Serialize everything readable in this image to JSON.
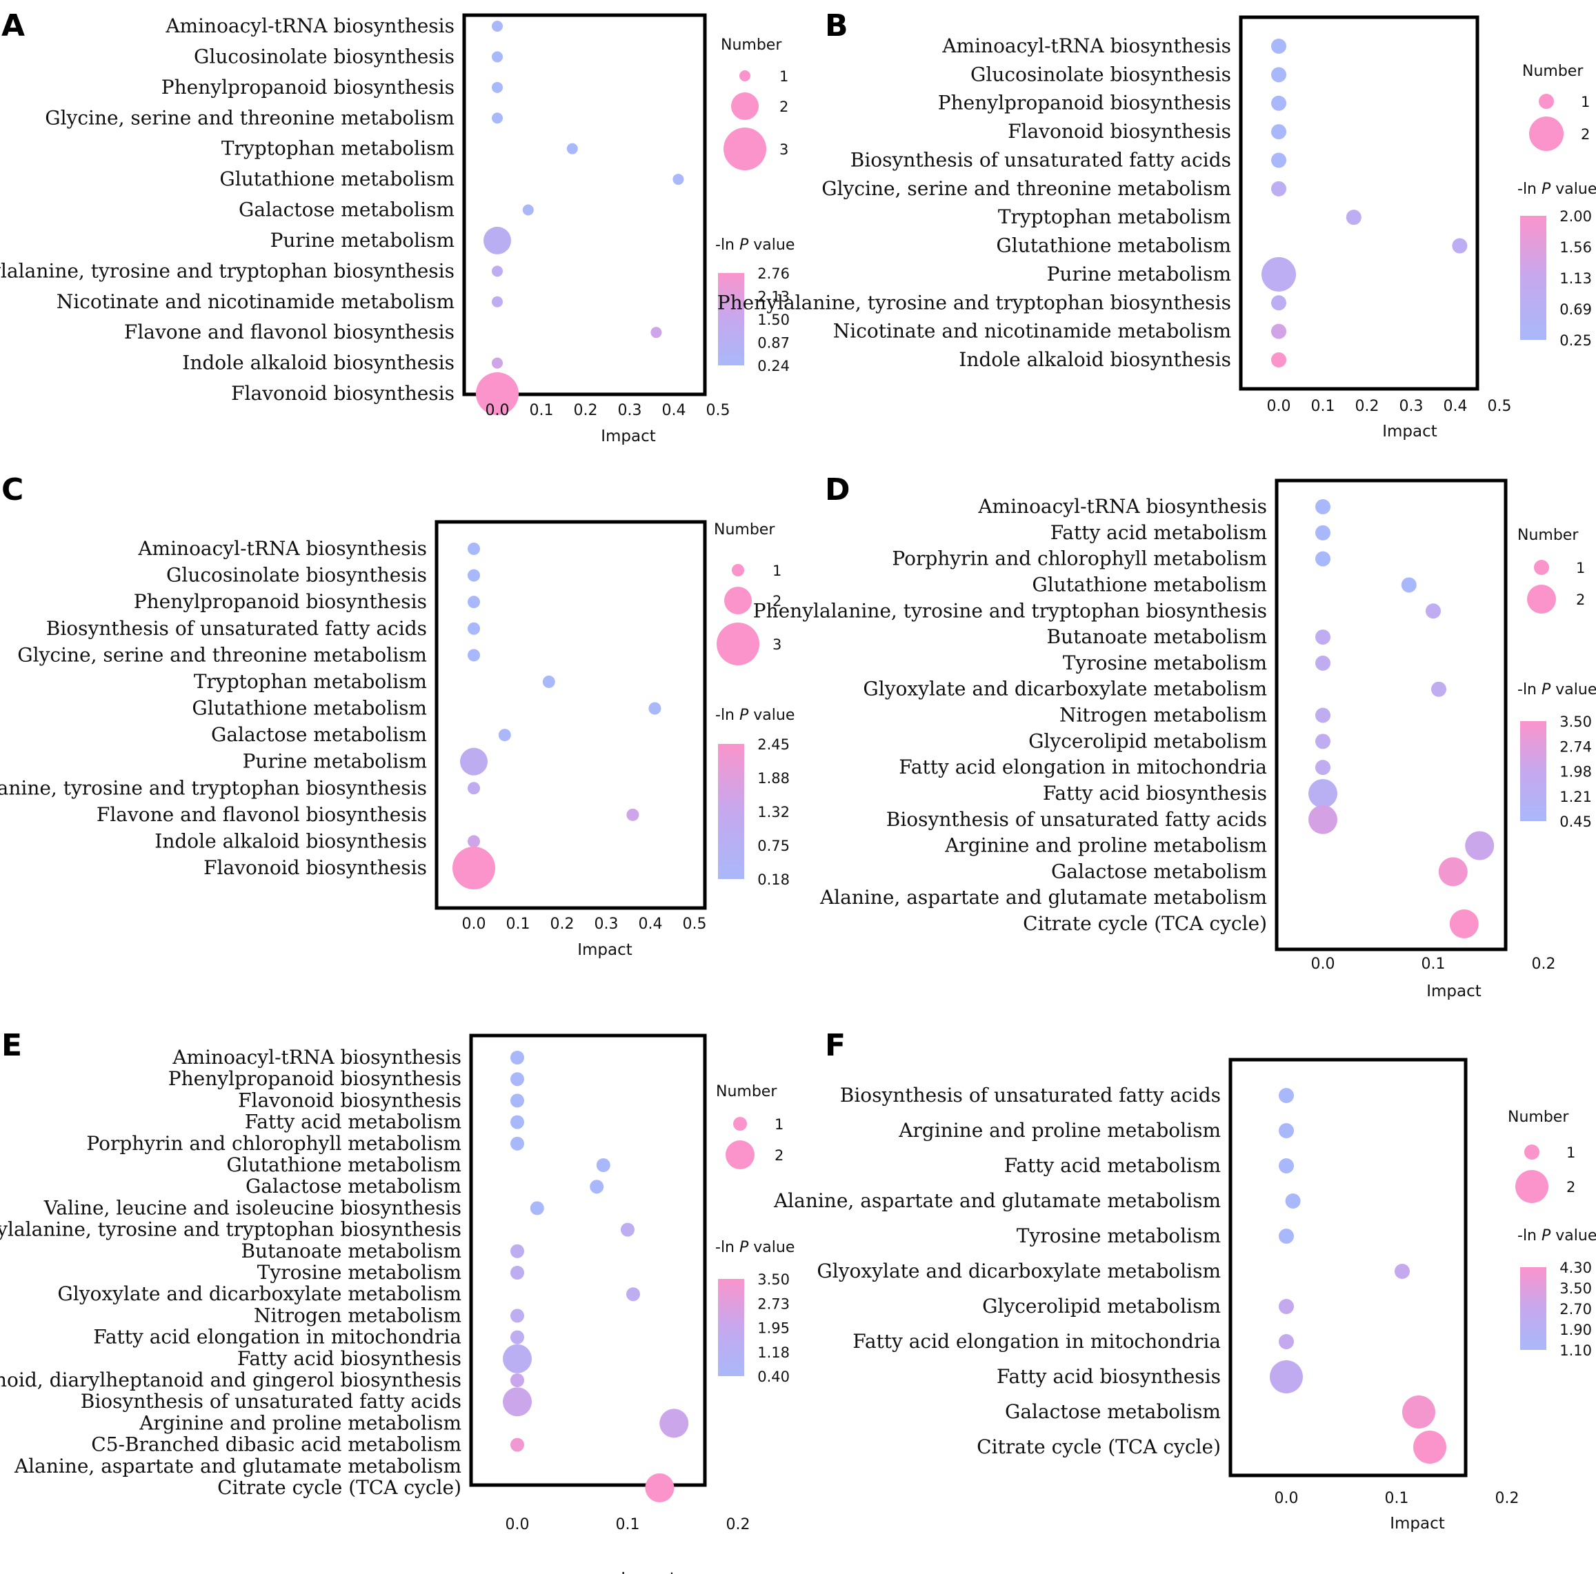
{
  "figure": {
    "colors": {
      "low": "#a9b8fa",
      "mid": "#c6a8ee",
      "high": "#fa94cb",
      "frame": "#000000"
    }
  },
  "chart_data": [
    {
      "panel": "A",
      "type": "scatter",
      "xlabel": "Impact",
      "x_ticks": [
        "0.0",
        "0.1",
        "0.2",
        "0.3",
        "0.4",
        "0.5"
      ],
      "xlim": [
        -0.08,
        0.5
      ],
      "size_legend": {
        "title": "Number",
        "values": [
          1,
          2,
          3
        ]
      },
      "color_legend": {
        "title_prefix": "-ln ",
        "title_italic": "P",
        "title_suffix": " value",
        "ticks": [
          "2.76",
          "2.13",
          "1.50",
          "0.87",
          "0.24"
        ]
      },
      "points": [
        {
          "label": "Aminoacyl-tRNA biosynthesis",
          "impact": 0.0,
          "number": 1,
          "neglogp": 0.24
        },
        {
          "label": "Glucosinolate biosynthesis",
          "impact": 0.0,
          "number": 1,
          "neglogp": 0.24
        },
        {
          "label": "Phenylpropanoid biosynthesis",
          "impact": 0.0,
          "number": 1,
          "neglogp": 0.24
        },
        {
          "label": "Glycine, serine and threonine metabolism",
          "impact": 0.0,
          "number": 1,
          "neglogp": 0.24
        },
        {
          "label": "Tryptophan metabolism",
          "impact": 0.17,
          "number": 1,
          "neglogp": 0.24
        },
        {
          "label": "Glutathione metabolism",
          "impact": 0.41,
          "number": 1,
          "neglogp": 0.24
        },
        {
          "label": "Galactose metabolism",
          "impact": 0.07,
          "number": 1,
          "neglogp": 0.3
        },
        {
          "label": "Purine metabolism",
          "impact": 0.0,
          "number": 2,
          "neglogp": 1.0
        },
        {
          "label": "Phenylalanine, tyrosine and tryptophan biosynthesis",
          "impact": 0.0,
          "number": 1,
          "neglogp": 1.2
        },
        {
          "label": "Nicotinate and nicotinamide metabolism",
          "impact": 0.0,
          "number": 1,
          "neglogp": 1.2
        },
        {
          "label": "Flavone and flavonol biosynthesis",
          "impact": 0.36,
          "number": 1,
          "neglogp": 1.7
        },
        {
          "label": "Indole alkaloid biosynthesis",
          "impact": 0.0,
          "number": 1,
          "neglogp": 1.7
        },
        {
          "label": "Flavonoid biosynthesis",
          "impact": 0.0,
          "number": 3,
          "neglogp": 2.76
        }
      ]
    },
    {
      "panel": "B",
      "type": "scatter",
      "xlabel": "Impact",
      "x_ticks": [
        "0.0",
        "0.1",
        "0.2",
        "0.3",
        "0.4",
        "0.5"
      ],
      "xlim": [
        -0.08,
        0.5
      ],
      "size_legend": {
        "title": "Number",
        "values": [
          1,
          2
        ]
      },
      "color_legend": {
        "title_prefix": "-ln ",
        "title_italic": "P",
        "title_suffix": " value",
        "ticks": [
          "2.00",
          "1.56",
          "1.13",
          "0.69",
          "0.25"
        ]
      },
      "points": [
        {
          "label": "Aminoacyl-tRNA biosynthesis",
          "impact": 0.0,
          "number": 1,
          "neglogp": 0.25
        },
        {
          "label": "Glucosinolate biosynthesis",
          "impact": 0.0,
          "number": 1,
          "neglogp": 0.25
        },
        {
          "label": "Phenylpropanoid biosynthesis",
          "impact": 0.0,
          "number": 1,
          "neglogp": 0.25
        },
        {
          "label": "Flavonoid biosynthesis",
          "impact": 0.0,
          "number": 1,
          "neglogp": 0.25
        },
        {
          "label": "Biosynthesis of unsaturated fatty acids",
          "impact": 0.0,
          "number": 1,
          "neglogp": 0.25
        },
        {
          "label": "Glycine, serine and threonine metabolism",
          "impact": 0.0,
          "number": 1,
          "neglogp": 0.85
        },
        {
          "label": "Tryptophan metabolism",
          "impact": 0.17,
          "number": 1,
          "neglogp": 0.85
        },
        {
          "label": "Glutathione metabolism",
          "impact": 0.41,
          "number": 1,
          "neglogp": 0.85
        },
        {
          "label": "Purine metabolism",
          "impact": 0.0,
          "number": 2,
          "neglogp": 0.85
        },
        {
          "label": "Phenylalanine, tyrosine and tryptophan biosynthesis",
          "impact": 0.0,
          "number": 1,
          "neglogp": 0.85
        },
        {
          "label": "Nicotinate and nicotinamide metabolism",
          "impact": 0.0,
          "number": 1,
          "neglogp": 1.3
        },
        {
          "label": "Indole alkaloid biosynthesis",
          "impact": 0.0,
          "number": 1,
          "neglogp": 2.0
        }
      ]
    },
    {
      "panel": "C",
      "type": "scatter",
      "xlabel": "Impact",
      "x_ticks": [
        "0.0",
        "0.1",
        "0.2",
        "0.3",
        "0.4",
        "0.5"
      ],
      "xlim": [
        -0.08,
        0.5
      ],
      "size_legend": {
        "title": "Number",
        "values": [
          1,
          2,
          3
        ]
      },
      "color_legend": {
        "title_prefix": "-ln ",
        "title_italic": "P",
        "title_suffix": " value",
        "ticks": [
          "2.45",
          "1.88",
          "1.32",
          "0.75",
          "0.18"
        ]
      },
      "points": [
        {
          "label": "Aminoacyl-tRNA biosynthesis",
          "impact": 0.0,
          "number": 1,
          "neglogp": 0.18
        },
        {
          "label": "Glucosinolate biosynthesis",
          "impact": 0.0,
          "number": 1,
          "neglogp": 0.18
        },
        {
          "label": "Phenylpropanoid biosynthesis",
          "impact": 0.0,
          "number": 1,
          "neglogp": 0.18
        },
        {
          "label": "Biosynthesis of unsaturated fatty acids",
          "impact": 0.0,
          "number": 1,
          "neglogp": 0.18
        },
        {
          "label": "Glycine, serine and threonine metabolism",
          "impact": 0.0,
          "number": 1,
          "neglogp": 0.18
        },
        {
          "label": "Tryptophan metabolism",
          "impact": 0.17,
          "number": 1,
          "neglogp": 0.18
        },
        {
          "label": "Glutathione metabolism",
          "impact": 0.41,
          "number": 1,
          "neglogp": 0.18
        },
        {
          "label": "Galactose metabolism",
          "impact": 0.07,
          "number": 1,
          "neglogp": 0.25
        },
        {
          "label": "Purine metabolism",
          "impact": 0.0,
          "number": 2,
          "neglogp": 1.0
        },
        {
          "label": "Phenylalanine, tyrosine and tryptophan biosynthesis",
          "impact": 0.0,
          "number": 1,
          "neglogp": 1.1
        },
        {
          "label": "Flavone and flavonol biosynthesis",
          "impact": 0.36,
          "number": 1,
          "neglogp": 1.5
        },
        {
          "label": "Indole alkaloid biosynthesis",
          "impact": 0.0,
          "number": 1,
          "neglogp": 1.5
        },
        {
          "label": "Flavonoid biosynthesis",
          "impact": 0.0,
          "number": 3,
          "neglogp": 2.45
        }
      ]
    },
    {
      "panel": "D",
      "type": "scatter",
      "xlabel": "Impact",
      "x_ticks": [
        "0.0",
        "0.1",
        "0.2"
      ],
      "xlim": [
        -0.05,
        0.2
      ],
      "size_legend": {
        "title": "Number",
        "values": [
          1,
          2
        ]
      },
      "color_legend": {
        "title_prefix": "-ln ",
        "title_italic": "P",
        "title_suffix": " value",
        "ticks": [
          "3.50",
          "2.74",
          "1.98",
          "1.21",
          "0.45"
        ]
      },
      "points": [
        {
          "label": "Aminoacyl-tRNA biosynthesis",
          "impact": 0.0,
          "number": 1,
          "neglogp": 0.45
        },
        {
          "label": "Fatty acid metabolism",
          "impact": 0.0,
          "number": 1,
          "neglogp": 0.45
        },
        {
          "label": "Porphyrin and chlorophyll metabolism",
          "impact": 0.0,
          "number": 1,
          "neglogp": 0.45
        },
        {
          "label": "Glutathione metabolism",
          "impact": 0.078,
          "number": 1,
          "neglogp": 0.45
        },
        {
          "label": "Phenylalanine, tyrosine and tryptophan biosynthesis",
          "impact": 0.1,
          "number": 1,
          "neglogp": 1.6
        },
        {
          "label": "Butanoate metabolism",
          "impact": 0.0,
          "number": 1,
          "neglogp": 1.6
        },
        {
          "label": "Tyrosine metabolism",
          "impact": 0.0,
          "number": 1,
          "neglogp": 1.6
        },
        {
          "label": "Glyoxylate and dicarboxylate metabolism",
          "impact": 0.105,
          "number": 1,
          "neglogp": 1.6
        },
        {
          "label": "Nitrogen metabolism",
          "impact": 0.0,
          "number": 1,
          "neglogp": 1.6
        },
        {
          "label": "Glycerolipid metabolism",
          "impact": 0.0,
          "number": 1,
          "neglogp": 1.6
        },
        {
          "label": "Fatty acid elongation in mitochondria",
          "impact": 0.0,
          "number": 1,
          "neglogp": 1.6
        },
        {
          "label": "Fatty acid biosynthesis",
          "impact": 0.0,
          "number": 2,
          "neglogp": 1.3
        },
        {
          "label": "Biosynthesis of unsaturated fatty acids",
          "impact": 0.0,
          "number": 2,
          "neglogp": 2.4
        },
        {
          "label": "Arginine and proline metabolism",
          "impact": 0.142,
          "number": 2,
          "neglogp": 2.1
        },
        {
          "label": "Galactose metabolism",
          "impact": 0.118,
          "number": 2,
          "neglogp": 3.3
        },
        {
          "label": "Alanine, aspartate and glutamate metabolism",
          "impact": null,
          "number": null,
          "neglogp": null
        },
        {
          "label": "Citrate cycle (TCA cycle)",
          "impact": 0.128,
          "number": 2,
          "neglogp": 3.5
        }
      ]
    },
    {
      "panel": "E",
      "type": "scatter",
      "xlabel": "Impact",
      "x_ticks": [
        "0.0",
        "0.1",
        "0.2"
      ],
      "xlim": [
        -0.05,
        0.2
      ],
      "size_legend": {
        "title": "Number",
        "values": [
          1,
          2
        ]
      },
      "color_legend": {
        "title_prefix": "-ln ",
        "title_italic": "P",
        "title_suffix": " value",
        "ticks": [
          "3.50",
          "2.73",
          "1.95",
          "1.18",
          "0.40"
        ]
      },
      "points": [
        {
          "label": "Aminoacyl-tRNA biosynthesis",
          "impact": 0.0,
          "number": 1,
          "neglogp": 0.4
        },
        {
          "label": "Phenylpropanoid biosynthesis",
          "impact": 0.0,
          "number": 1,
          "neglogp": 0.4
        },
        {
          "label": "Flavonoid biosynthesis",
          "impact": 0.0,
          "number": 1,
          "neglogp": 0.4
        },
        {
          "label": "Fatty acid metabolism",
          "impact": 0.0,
          "number": 1,
          "neglogp": 0.4
        },
        {
          "label": "Porphyrin and chlorophyll metabolism",
          "impact": 0.0,
          "number": 1,
          "neglogp": 0.4
        },
        {
          "label": "Glutathione metabolism",
          "impact": 0.078,
          "number": 1,
          "neglogp": 0.4
        },
        {
          "label": "Galactose metabolism",
          "impact": 0.072,
          "number": 1,
          "neglogp": 0.4
        },
        {
          "label": "Valine, leucine and isoleucine biosynthesis",
          "impact": 0.018,
          "number": 1,
          "neglogp": 0.4
        },
        {
          "label": "Phenylalanine, tyrosine and tryptophan biosynthesis",
          "impact": 0.1,
          "number": 1,
          "neglogp": 1.5
        },
        {
          "label": "Butanoate metabolism",
          "impact": 0.0,
          "number": 1,
          "neglogp": 1.5
        },
        {
          "label": "Tyrosine metabolism",
          "impact": 0.0,
          "number": 1,
          "neglogp": 1.5
        },
        {
          "label": "Glyoxylate and dicarboxylate metabolism",
          "impact": 0.105,
          "number": 1,
          "neglogp": 1.5
        },
        {
          "label": "Nitrogen metabolism",
          "impact": 0.0,
          "number": 1,
          "neglogp": 1.5
        },
        {
          "label": "Fatty acid elongation in mitochondria",
          "impact": 0.0,
          "number": 1,
          "neglogp": 1.5
        },
        {
          "label": "Fatty acid biosynthesis",
          "impact": 0.0,
          "number": 2,
          "neglogp": 1.3
        },
        {
          "label": "Stilbenoid, diarylheptanoid and gingerol biosynthesis",
          "impact": 0.0,
          "number": 1,
          "neglogp": 2.0
        },
        {
          "label": "Biosynthesis of unsaturated fatty acids",
          "impact": 0.0,
          "number": 2,
          "neglogp": 2.1
        },
        {
          "label": "Arginine and proline metabolism",
          "impact": 0.142,
          "number": 2,
          "neglogp": 2.1
        },
        {
          "label": "C5-Branched dibasic acid metabolism",
          "impact": 0.0,
          "number": 1,
          "neglogp": 3.2
        },
        {
          "label": "Alanine, aspartate and glutamate metabolism",
          "impact": null,
          "number": null,
          "neglogp": null
        },
        {
          "label": "Citrate cycle (TCA cycle)",
          "impact": 0.129,
          "number": 2,
          "neglogp": 3.5
        }
      ]
    },
    {
      "panel": "F",
      "type": "scatter",
      "xlabel": "Impact",
      "x_ticks": [
        "0.0",
        "0.1",
        "0.2"
      ],
      "xlim": [
        -0.05,
        0.2
      ],
      "size_legend": {
        "title": "Number",
        "values": [
          1,
          2
        ]
      },
      "color_legend": {
        "title_prefix": "-ln ",
        "title_italic": "P",
        "title_suffix": " value",
        "ticks": [
          "4.30",
          "3.50",
          "2.70",
          "1.90",
          "1.10"
        ]
      },
      "points": [
        {
          "label": "Biosynthesis of unsaturated fatty acids",
          "impact": 0.0,
          "number": 1,
          "neglogp": 1.1
        },
        {
          "label": "Arginine and proline metabolism",
          "impact": 0.0,
          "number": 1,
          "neglogp": 1.1
        },
        {
          "label": "Fatty acid metabolism",
          "impact": 0.0,
          "number": 1,
          "neglogp": 1.1
        },
        {
          "label": "Alanine, aspartate and glutamate metabolism",
          "impact": 0.006,
          "number": 1,
          "neglogp": 1.1
        },
        {
          "label": "Tyrosine metabolism",
          "impact": 0.0,
          "number": 1,
          "neglogp": 1.1
        },
        {
          "label": "Glyoxylate and dicarboxylate metabolism",
          "impact": 0.105,
          "number": 1,
          "neglogp": 2.6
        },
        {
          "label": "Glycerolipid metabolism",
          "impact": 0.0,
          "number": 1,
          "neglogp": 2.6
        },
        {
          "label": "Fatty acid elongation in mitochondria",
          "impact": 0.0,
          "number": 1,
          "neglogp": 2.6
        },
        {
          "label": "Fatty acid biosynthesis",
          "impact": 0.0,
          "number": 2,
          "neglogp": 2.4
        },
        {
          "label": "Galactose metabolism",
          "impact": 0.12,
          "number": 2,
          "neglogp": 4.1
        },
        {
          "label": "Citrate cycle (TCA cycle)",
          "impact": 0.13,
          "number": 2,
          "neglogp": 4.3
        }
      ]
    }
  ]
}
